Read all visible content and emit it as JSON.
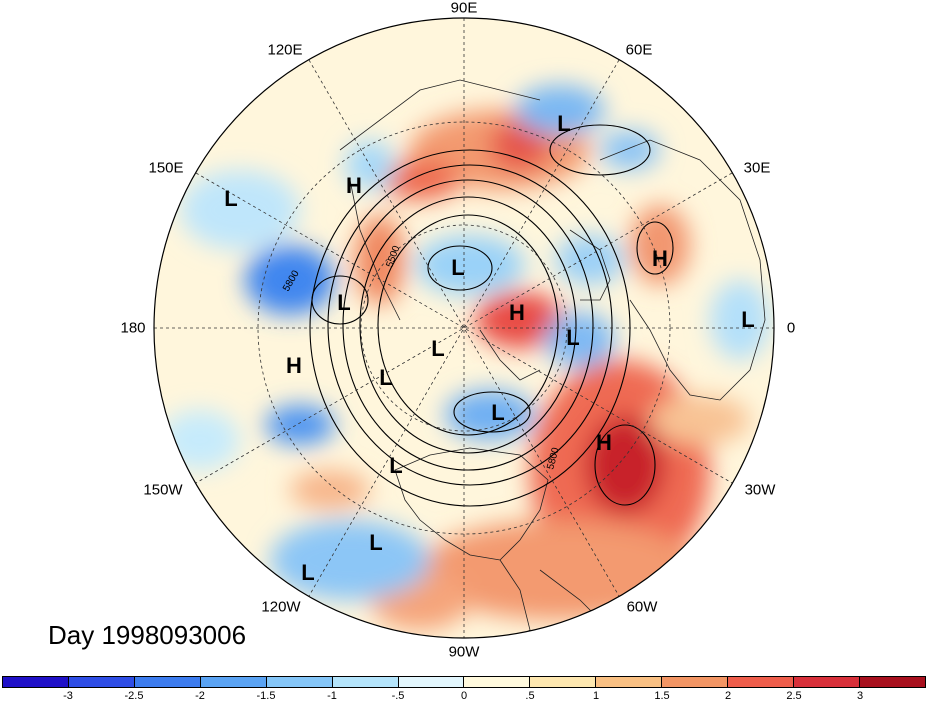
{
  "title": "Day 1998093006",
  "longitude_labels": [
    "90E",
    "60E",
    "120E",
    "150E",
    "30E",
    "180",
    "0",
    "150W",
    "30W",
    "120W",
    "60W",
    "90W"
  ],
  "pressure_labels": [
    {
      "text": "H",
      "id": "h1"
    },
    {
      "text": "H",
      "id": "h2"
    },
    {
      "text": "H",
      "id": "h3"
    },
    {
      "text": "H",
      "id": "h4"
    },
    {
      "text": "H",
      "id": "h5"
    },
    {
      "text": "L",
      "id": "l1"
    },
    {
      "text": "L",
      "id": "l2"
    },
    {
      "text": "L",
      "id": "l3"
    },
    {
      "text": "L",
      "id": "l4"
    },
    {
      "text": "L",
      "id": "l5"
    },
    {
      "text": "L",
      "id": "l6"
    },
    {
      "text": "L",
      "id": "l7"
    },
    {
      "text": "L",
      "id": "l8"
    },
    {
      "text": "L",
      "id": "l9"
    },
    {
      "text": "L",
      "id": "l10"
    },
    {
      "text": "L",
      "id": "l11"
    }
  ],
  "contour_labels": [
    "5500",
    "5800",
    "5800"
  ],
  "colorbar": {
    "ticks": [
      "-3",
      "-2.5",
      "-2",
      "-1.5",
      "-1",
      "-.5",
      "0",
      ".5",
      "1",
      "1.5",
      "2",
      "2.5",
      "3"
    ],
    "colors": [
      "#1f10c8",
      "#2e4de6",
      "#3c7cef",
      "#5aa3f3",
      "#85c6f8",
      "#b4e4fb",
      "#e2f6fd",
      "#fff9dd",
      "#fde7b0",
      "#f9c083",
      "#f29564",
      "#ee5d4b",
      "#d8303a",
      "#a8101e"
    ]
  }
}
